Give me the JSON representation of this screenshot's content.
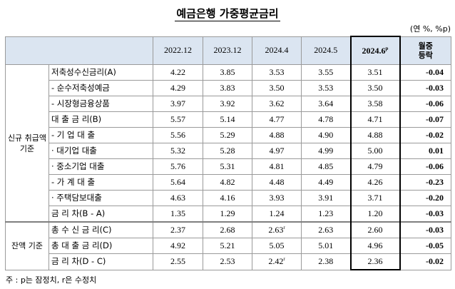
{
  "title": "예금은행 가중평균금리",
  "unit": "(연 %, %p)",
  "columns": [
    "2022.12",
    "2023.12",
    "2024.4",
    "2024.5",
    "2024.6",
    "월중 등락"
  ],
  "highlight_sup": "p",
  "change_header_line1": "월중",
  "change_header_line2": "등락",
  "groups": {
    "new": "신규 취급액 기준",
    "balance": "잔액 기준"
  },
  "rows": [
    {
      "label": "저축성수신금리(A)",
      "values": [
        "4.22",
        "3.85",
        "3.53",
        "3.55",
        "3.51"
      ],
      "change": "-0.04"
    },
    {
      "label": "- 순수저축성예금",
      "values": [
        "4.29",
        "3.83",
        "3.50",
        "3.53",
        "3.50"
      ],
      "change": "-0.03"
    },
    {
      "label": "- 시장형금융상품",
      "values": [
        "3.97",
        "3.92",
        "3.62",
        "3.64",
        "3.58"
      ],
      "change": "-0.06"
    },
    {
      "label": "대 출 금 리(B)",
      "values": [
        "5.57",
        "5.14",
        "4.77",
        "4.78",
        "4.71"
      ],
      "change": "-0.07"
    },
    {
      "label": "- 기 업 대 출",
      "values": [
        "5.56",
        "5.29",
        "4.88",
        "4.90",
        "4.88"
      ],
      "change": "-0.02"
    },
    {
      "label": "· 대기업 대출",
      "values": [
        "5.32",
        "5.28",
        "4.97",
        "4.99",
        "5.00"
      ],
      "change": "0.01"
    },
    {
      "label": "· 중소기업 대출",
      "values": [
        "5.76",
        "5.31",
        "4.81",
        "4.85",
        "4.79"
      ],
      "change": "-0.06"
    },
    {
      "label": "- 가 계 대 출",
      "values": [
        "5.64",
        "4.82",
        "4.48",
        "4.49",
        "4.26"
      ],
      "change": "-0.23"
    },
    {
      "label": "· 주택담보대출",
      "values": [
        "4.63",
        "4.16",
        "3.93",
        "3.91",
        "3.71"
      ],
      "change": "-0.20"
    },
    {
      "label": "금 리 차(B - A)",
      "values": [
        "1.35",
        "1.29",
        "1.24",
        "1.23",
        "1.20"
      ],
      "change": "-0.03"
    },
    {
      "label": "총 수 신 금 리(C)",
      "values": [
        "2.37",
        "2.68",
        "2.63",
        "2.63",
        "2.60"
      ],
      "change": "-0.03",
      "sup_col": 2,
      "sup": "r"
    },
    {
      "label": "총 대 출 금 리(D)",
      "values": [
        "4.92",
        "5.21",
        "5.05",
        "5.01",
        "4.96"
      ],
      "change": "-0.05"
    },
    {
      "label": "금 리 차(D - C)",
      "values": [
        "2.55",
        "2.53",
        "2.42",
        "2.38",
        "2.36"
      ],
      "change": "-0.02",
      "sup_col": 2,
      "sup": "r"
    }
  ],
  "note": "주 : p는 잠정치, r은 수정치"
}
